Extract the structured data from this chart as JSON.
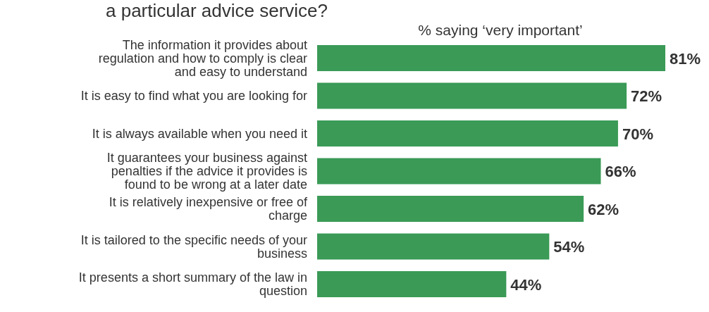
{
  "chart_data": {
    "type": "bar",
    "orientation": "horizontal",
    "title": "a particular advice service?",
    "subtitle": "% saying ‘very important’",
    "categories": [
      "The information it provides about regulation and how to comply is clear and easy to understand",
      "It is easy to find what you are looking for",
      "It is always available when you need it",
      "It guarantees your business against penalties if the advice it provides is found to be wrong at a later date",
      "It is relatively inexpensive or free of charge",
      "It is tailored to the specific needs of your business",
      "It presents a short summary of the law in question"
    ],
    "values": [
      81,
      72,
      70,
      66,
      62,
      54,
      44
    ],
    "color": "#3a9a56",
    "value_labels": [
      "81%",
      "72%",
      "70%",
      "66%",
      "62%",
      "54%",
      "44%"
    ]
  }
}
